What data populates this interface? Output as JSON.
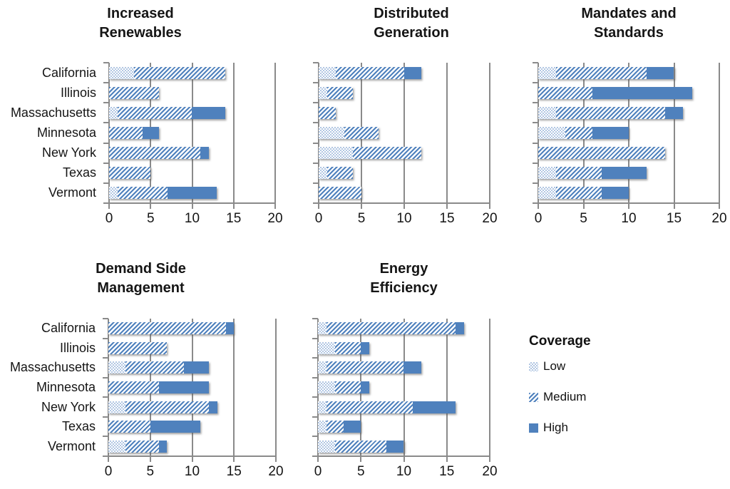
{
  "figure": {
    "legend": {
      "title": "Coverage",
      "items": [
        {
          "label": "Low",
          "pattern": "low"
        },
        {
          "label": "Medium",
          "pattern": "medium"
        },
        {
          "label": "High",
          "pattern": "high"
        }
      ]
    },
    "colors": {
      "solid_blue": "#4f81bd",
      "dot_blue": "#b2c7e3",
      "grid_gray": "#8a8a8a",
      "text": "#151515"
    }
  },
  "chart_data": [
    {
      "type": "bar",
      "orientation": "horizontal-stacked",
      "title_line1": "Increased",
      "title_line2": "Renewables",
      "categories": [
        "California",
        "Illinois",
        "Massachusetts",
        "Minnesota",
        "New York",
        "Texas",
        "Vermont"
      ],
      "show_category_labels": true,
      "xlim": [
        0,
        20
      ],
      "xticks": [
        0,
        5,
        10,
        15,
        20
      ],
      "grid": true,
      "series": [
        {
          "name": "Low",
          "values": [
            3,
            0,
            1,
            0,
            0,
            0,
            1
          ]
        },
        {
          "name": "Medium",
          "values": [
            11,
            6,
            9,
            4,
            11,
            5,
            6
          ]
        },
        {
          "name": "High",
          "values": [
            0,
            0,
            4,
            2,
            1,
            0,
            6
          ]
        }
      ]
    },
    {
      "type": "bar",
      "orientation": "horizontal-stacked",
      "title_line1": "Distributed",
      "title_line2": "Generation",
      "categories": [
        "California",
        "Illinois",
        "Massachusetts",
        "Minnesota",
        "New York",
        "Texas",
        "Vermont"
      ],
      "show_category_labels": false,
      "xlim": [
        0,
        20
      ],
      "xticks": [
        0,
        5,
        10,
        15,
        20
      ],
      "grid": true,
      "series": [
        {
          "name": "Low",
          "values": [
            2,
            1,
            0,
            3,
            4,
            1,
            0
          ]
        },
        {
          "name": "Medium",
          "values": [
            8,
            3,
            2,
            4,
            8,
            3,
            5
          ]
        },
        {
          "name": "High",
          "values": [
            2,
            0,
            0,
            0,
            0,
            0,
            0
          ]
        }
      ]
    },
    {
      "type": "bar",
      "orientation": "horizontal-stacked",
      "title_line1": "Mandates and",
      "title_line2": "Standards",
      "categories": [
        "California",
        "Illinois",
        "Massachusetts",
        "Minnesota",
        "New York",
        "Texas",
        "Vermont"
      ],
      "show_category_labels": false,
      "xlim": [
        0,
        20
      ],
      "xticks": [
        0,
        5,
        10,
        15,
        20
      ],
      "grid": true,
      "series": [
        {
          "name": "Low",
          "values": [
            2,
            0,
            2,
            3,
            0,
            2,
            2
          ]
        },
        {
          "name": "Medium",
          "values": [
            10,
            6,
            12,
            3,
            14,
            5,
            5
          ]
        },
        {
          "name": "High",
          "values": [
            3,
            11,
            2,
            4,
            0,
            5,
            3
          ]
        }
      ]
    },
    {
      "type": "bar",
      "orientation": "horizontal-stacked",
      "title_line1": "Demand Side",
      "title_line2": "Management",
      "categories": [
        "California",
        "Illinois",
        "Massachusetts",
        "Minnesota",
        "New York",
        "Texas",
        "Vermont"
      ],
      "show_category_labels": true,
      "xlim": [
        0,
        20
      ],
      "xticks": [
        0,
        5,
        10,
        15,
        20
      ],
      "grid": true,
      "series": [
        {
          "name": "Low",
          "values": [
            0,
            0,
            2,
            0,
            2,
            0,
            2
          ]
        },
        {
          "name": "Medium",
          "values": [
            14,
            7,
            7,
            6,
            10,
            5,
            4
          ]
        },
        {
          "name": "High",
          "values": [
            1,
            0,
            3,
            6,
            1,
            6,
            1
          ]
        }
      ]
    },
    {
      "type": "bar",
      "orientation": "horizontal-stacked",
      "title_line1": "Energy",
      "title_line2": "Efficiency",
      "categories": [
        "California",
        "Illinois",
        "Massachusetts",
        "Minnesota",
        "New York",
        "Texas",
        "Vermont"
      ],
      "show_category_labels": false,
      "xlim": [
        0,
        20
      ],
      "xticks": [
        0,
        5,
        10,
        15,
        20
      ],
      "grid": true,
      "series": [
        {
          "name": "Low",
          "values": [
            1,
            2,
            1,
            2,
            1,
            1,
            2
          ]
        },
        {
          "name": "Medium",
          "values": [
            15,
            3,
            9,
            3,
            10,
            2,
            6
          ]
        },
        {
          "name": "High",
          "values": [
            1,
            1,
            2,
            1,
            5,
            2,
            2
          ]
        }
      ]
    }
  ]
}
